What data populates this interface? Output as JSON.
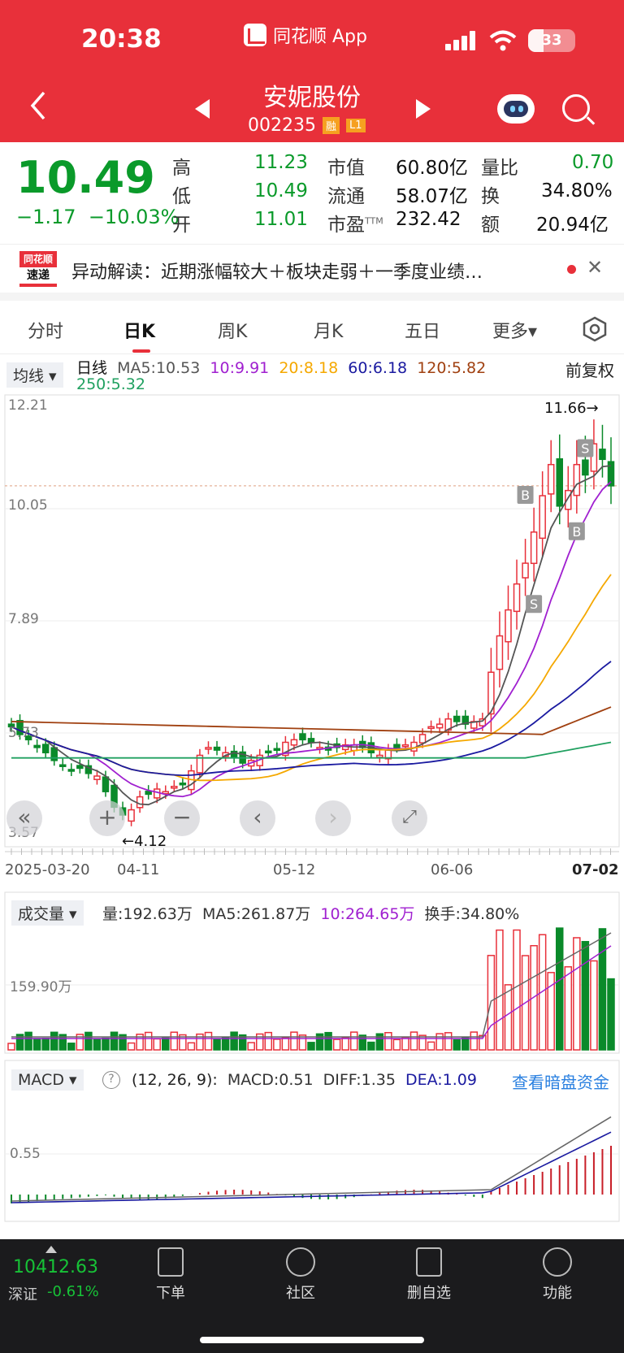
{
  "status": {
    "time": "20:38",
    "app_name": "同花顺 App",
    "battery": "33"
  },
  "stock": {
    "name": "安妮股份",
    "code": "002235",
    "tag_rong": "融",
    "tag_l1": "L1"
  },
  "quote": {
    "price": "10.49",
    "change": "−1.17",
    "change_pct": "−10.03%",
    "high_label": "高",
    "high": "11.23",
    "low_label": "低",
    "low": "10.49",
    "open_label": "开",
    "open": "11.01",
    "mktcap_label": "市值",
    "mktcap": "60.80亿",
    "float_label": "流通",
    "float": "58.07亿",
    "pe_label": "市盈",
    "pe_sup": "TTM",
    "pe": "232.42",
    "vr_label": "量比",
    "vr": "0.70",
    "turn_label": "换",
    "turn": "34.80%",
    "amt_label": "额",
    "amt": "20.94亿"
  },
  "banner": {
    "logo_top": "同花顺",
    "logo_bottom": "速递",
    "text": "异动解读：近期涨幅较大＋板块走弱＋一季度业绩…"
  },
  "tabs": [
    {
      "label": "分时"
    },
    {
      "label": "日K"
    },
    {
      "label": "周K"
    },
    {
      "label": "月K"
    },
    {
      "label": "五日"
    },
    {
      "label": "更多▾"
    }
  ],
  "kline_legend": {
    "dropdown": "均线",
    "period": "日线",
    "ma5": "MA5:10.53",
    "ma10": "10:9.91",
    "ma20": "20:8.18",
    "ma60": "60:6.18",
    "ma120": "120:5.82",
    "ma250": "250:5.32",
    "adjust": "前复权",
    "colors": {
      "ma5": "#555555",
      "ma10": "#a020d0",
      "ma20": "#f5a800",
      "ma60": "#1a1aa0",
      "ma120": "#a04010",
      "ma250": "#20a060"
    }
  },
  "kline_axis": {
    "y_labels": [
      "12.21",
      "10.05",
      "7.89",
      "5.73",
      "3.57"
    ],
    "high_note": "11.66→",
    "low_note": "←4.12",
    "x_labels": [
      "2025-03-20",
      "04-11",
      "05-12",
      "06-06",
      "07-02"
    ]
  },
  "markers": [
    "B",
    "S",
    "B",
    "S"
  ],
  "volume_legend": {
    "dropdown": "成交量",
    "vol": "量:192.63万",
    "ma5": "MA5:261.87万",
    "ma10": "10:264.65万",
    "turn": "换手:34.80%",
    "y_label": "159.90万"
  },
  "macd_legend": {
    "dropdown": "MACD",
    "help": "?",
    "params": "(12, 26, 9):",
    "macd": "MACD:0.51",
    "diff": "DIFF:1.35",
    "dea": "DEA:1.09",
    "link": "查看暗盘资金",
    "y_label": "0.55"
  },
  "bottom": {
    "index_value": "10412.63",
    "index_name": "深证",
    "index_change": "-0.61%",
    "nav": [
      {
        "label": "下单"
      },
      {
        "label": "社区"
      },
      {
        "label": "删自选"
      },
      {
        "label": "功能"
      }
    ]
  },
  "chart_data": {
    "type": "candlestick",
    "y_range": [
      3.57,
      12.21
    ],
    "last_close": 10.49,
    "ohlc_trend_close": [
      5.85,
      5.7,
      5.6,
      5.45,
      5.35,
      5.2,
      5.1,
      5.0,
      5.05,
      4.95,
      4.9,
      4.6,
      4.3,
      4.15,
      4.25,
      4.5,
      4.55,
      4.65,
      4.6,
      4.7,
      4.75,
      5.0,
      5.3,
      5.45,
      5.4,
      5.35,
      5.25,
      5.15,
      5.2,
      5.3,
      5.35,
      5.4,
      5.55,
      5.6,
      5.6,
      5.55,
      5.45,
      5.4,
      5.45,
      5.5,
      5.5,
      5.45,
      5.35,
      5.3,
      5.4,
      5.45,
      5.5,
      5.55,
      5.7,
      5.85,
      5.9,
      6.0,
      5.95,
      5.9,
      5.95,
      6.0,
      6.9,
      7.6,
      8.1,
      8.6,
      9.0,
      9.6,
      10.3,
      10.9,
      10.1,
      10.4,
      10.9,
      10.7,
      11.3,
      11.0,
      10.49
    ]
  }
}
